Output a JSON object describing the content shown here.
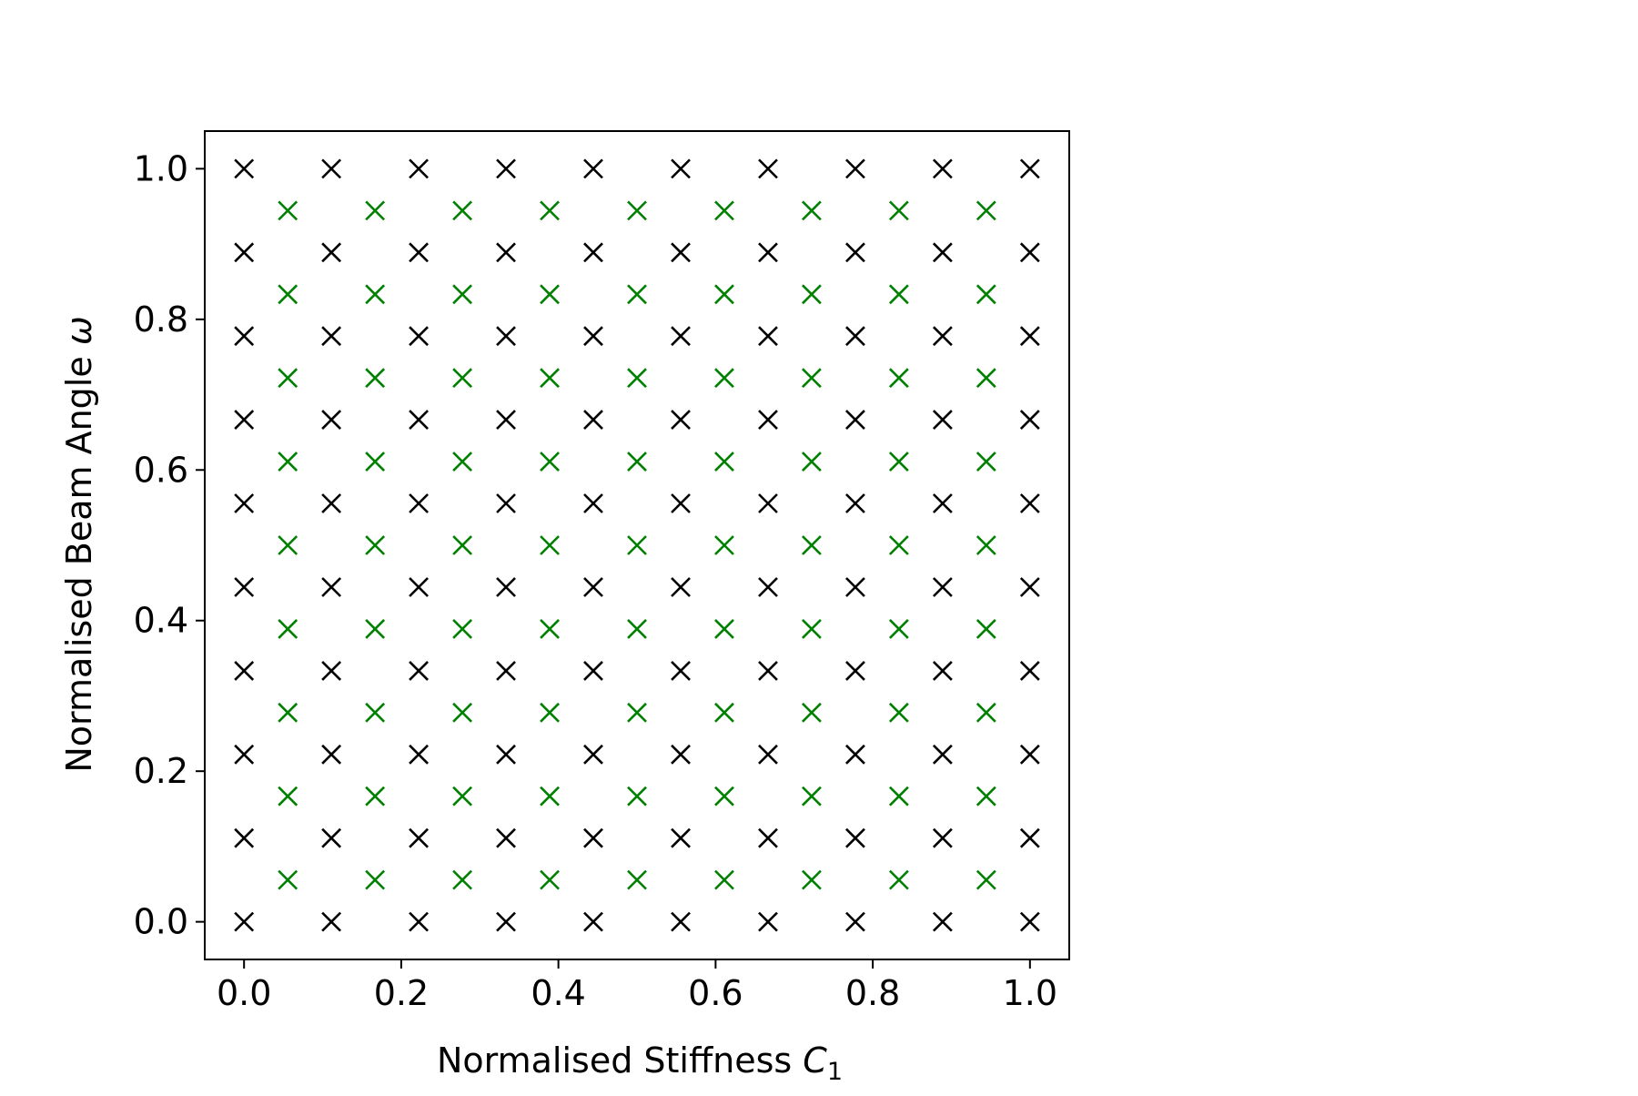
{
  "chart_data": {
    "type": "scatter",
    "xlabel": "Normalised Stiffness ",
    "xlabel_symbol": "C",
    "xlabel_subscript": "1",
    "ylabel": "Normalised Beam Angle ",
    "ylabel_symbol": "ω",
    "xlim": [
      -0.05,
      1.05
    ],
    "ylim": [
      -0.05,
      1.05
    ],
    "xticks": [
      0.0,
      0.2,
      0.4,
      0.6,
      0.8,
      1.0
    ],
    "yticks": [
      0.0,
      0.2,
      0.4,
      0.6,
      0.8,
      1.0
    ],
    "xtick_labels": [
      "0.0",
      "0.2",
      "0.4",
      "0.6",
      "0.8",
      "1.0"
    ],
    "ytick_labels": [
      "0.0",
      "0.2",
      "0.4",
      "0.6",
      "0.8",
      "1.0"
    ],
    "grid": false,
    "marker": "x",
    "series": [
      {
        "color": "#000000",
        "x_values": [
          0.0,
          0.1111,
          0.2222,
          0.3333,
          0.4444,
          0.5556,
          0.6667,
          0.7778,
          0.8889,
          1.0
        ],
        "y_values": [
          0.0,
          0.1111,
          0.2222,
          0.3333,
          0.4444,
          0.5556,
          0.6667,
          0.7778,
          0.8889,
          1.0
        ],
        "layout": "full grid (every x with every y)"
      },
      {
        "color": "#008000",
        "x_values": [
          0.0556,
          0.1667,
          0.2778,
          0.3889,
          0.5,
          0.6111,
          0.7222,
          0.8333,
          0.9444
        ],
        "y_values": [
          0.0556,
          0.1667,
          0.2778,
          0.3889,
          0.5,
          0.6111,
          0.7222,
          0.8333,
          0.9444
        ],
        "layout": "full grid (every x with every y)"
      }
    ]
  }
}
